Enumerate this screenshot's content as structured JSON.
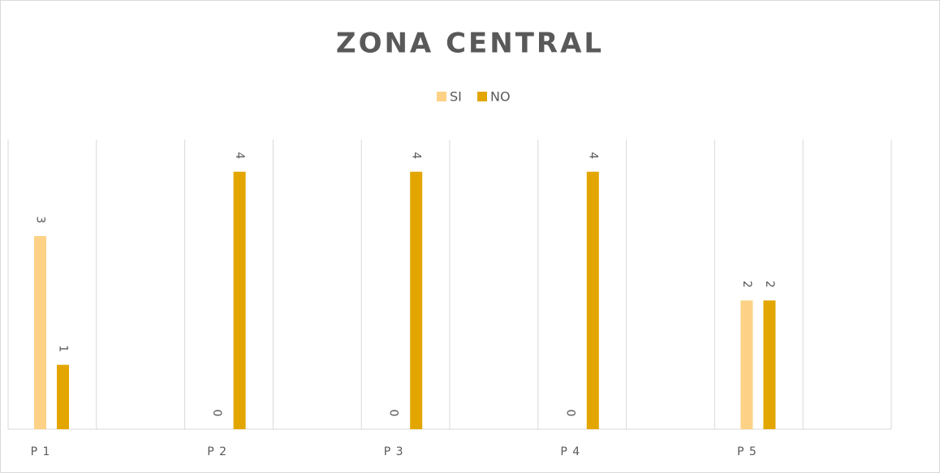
{
  "chart_data": {
    "type": "bar",
    "title": "ZONA CENTRAL",
    "categories": [
      "P 1",
      "P 2",
      "P 3",
      "P 4",
      "P 5"
    ],
    "series": [
      {
        "name": "SI",
        "color": "#fdd286",
        "values": [
          3,
          0,
          0,
          0,
          2
        ]
      },
      {
        "name": "NO",
        "color": "#e3a600",
        "values": [
          1,
          4,
          4,
          4,
          2
        ]
      }
    ],
    "ylim": [
      0,
      4.5
    ],
    "legend": "top"
  }
}
